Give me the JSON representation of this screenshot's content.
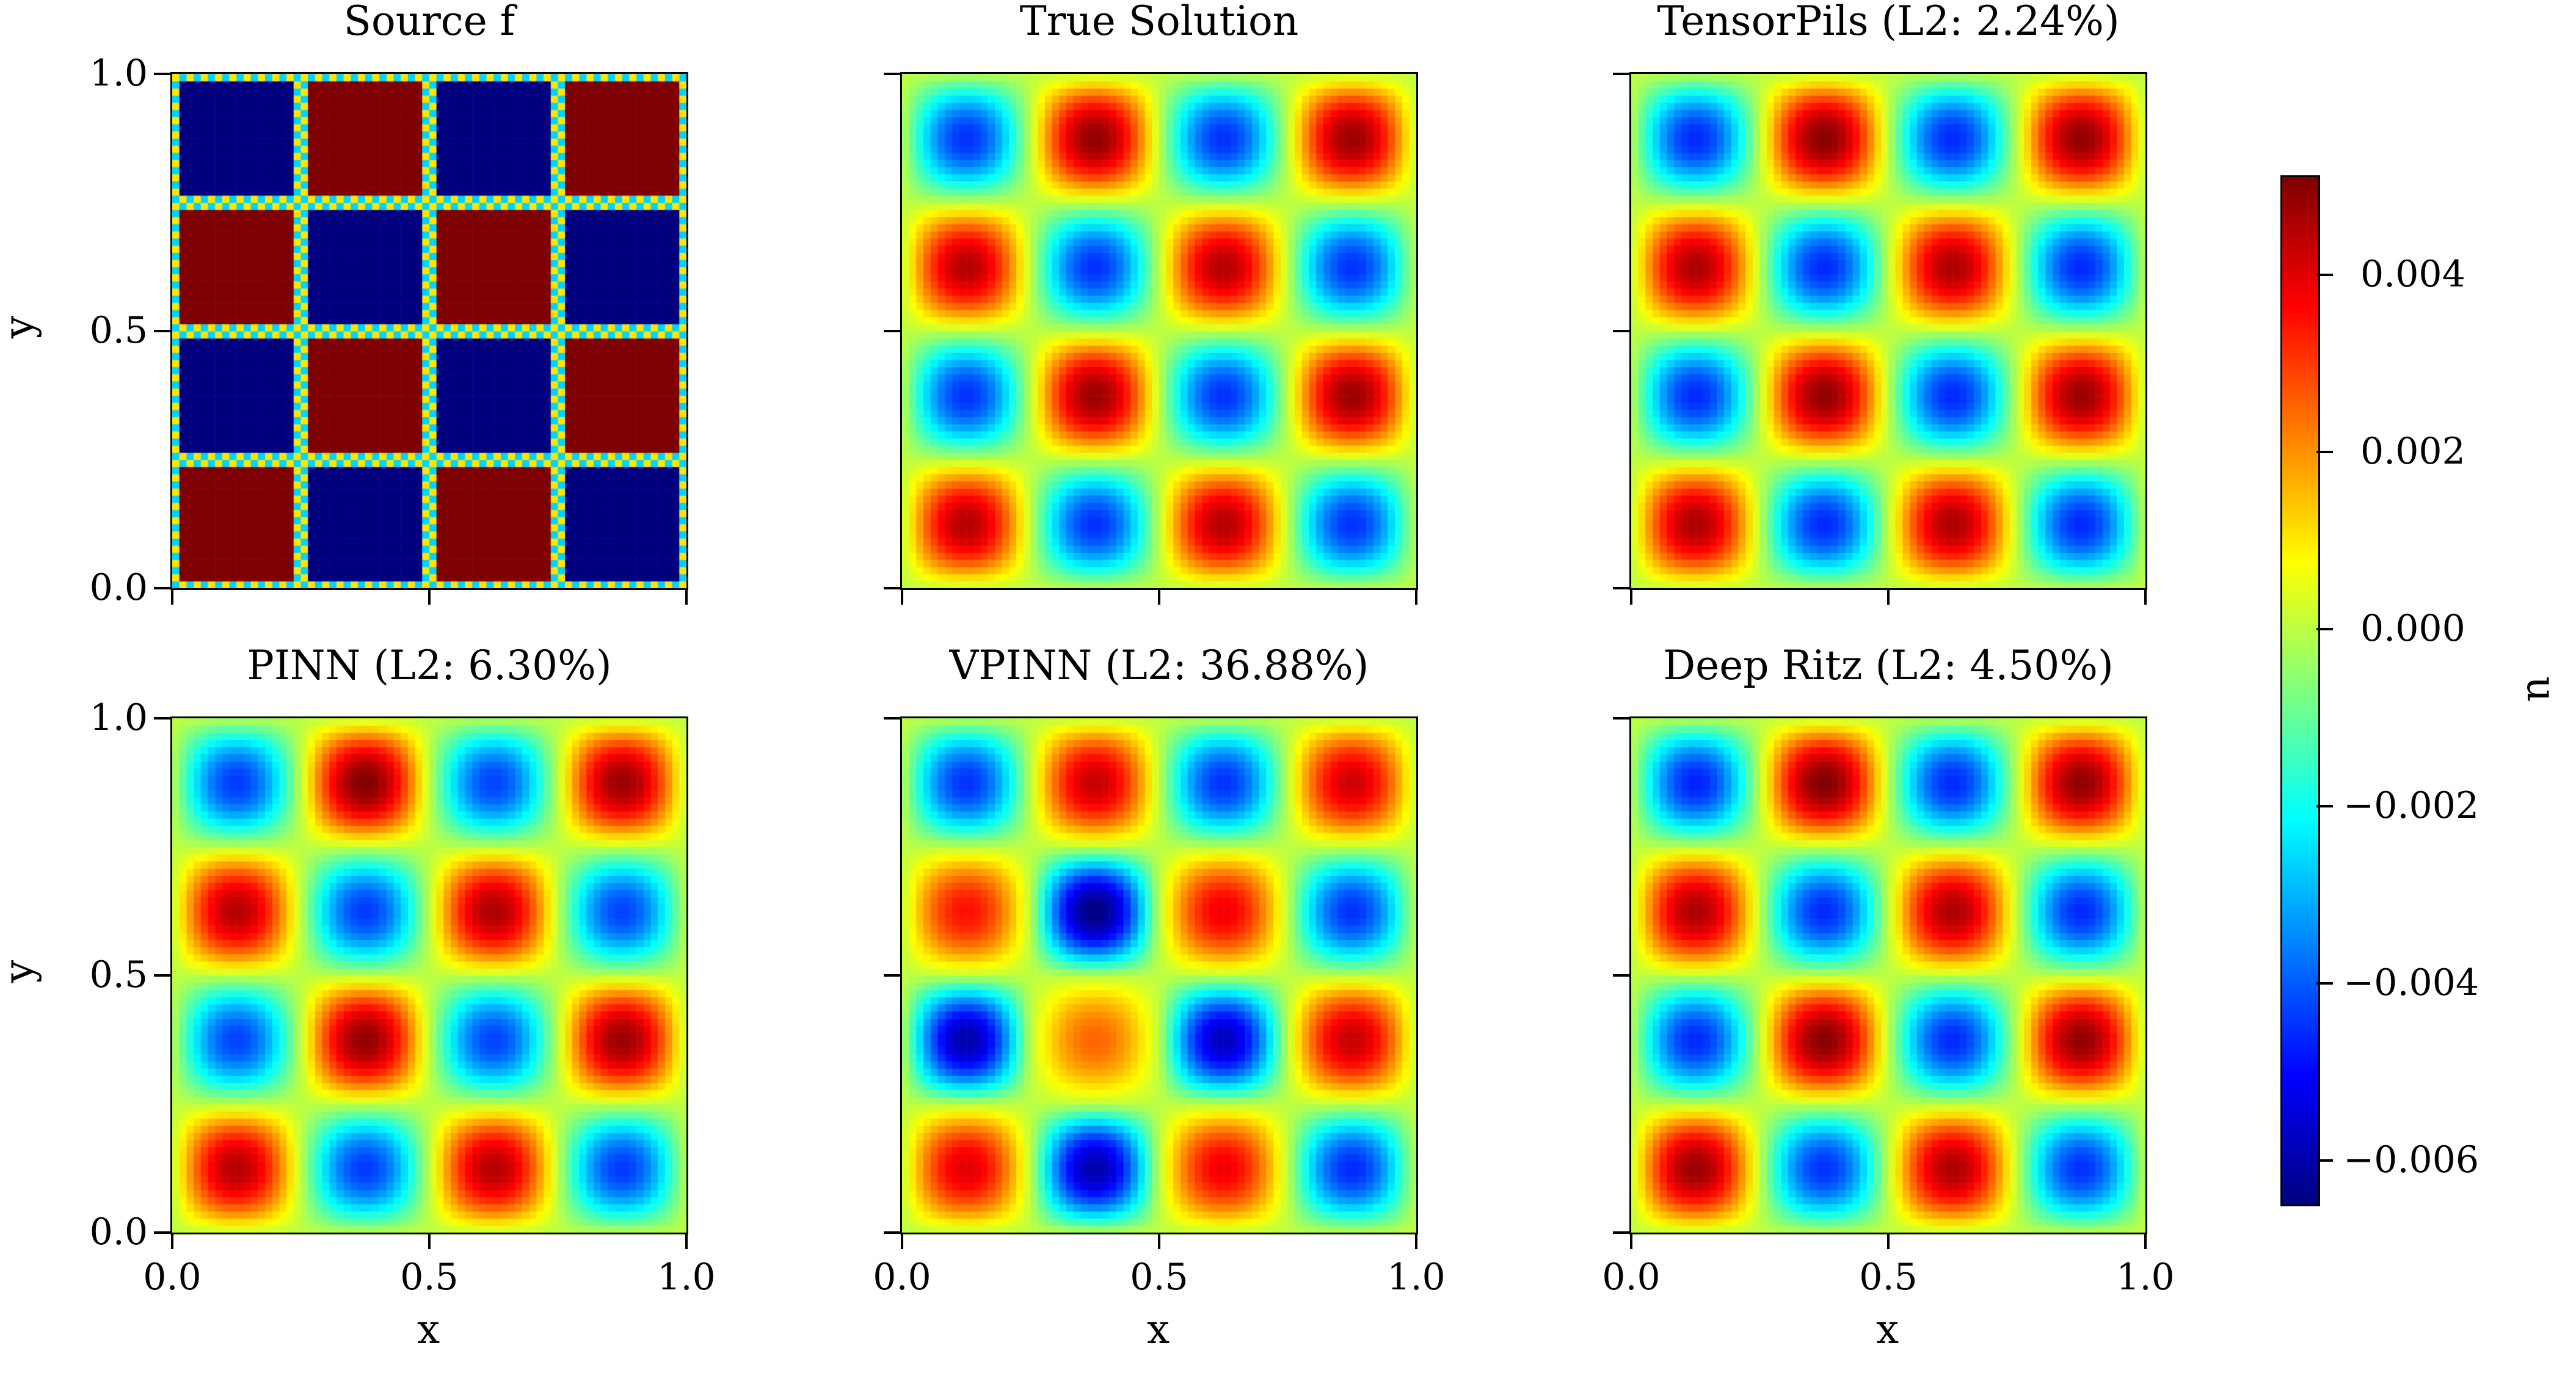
{
  "chart_data": [
    {
      "type": "heatmap",
      "title": "Source f",
      "xlabel": "",
      "ylabel": "y",
      "kind": "checkerboard",
      "cell_signs": [
        [
          1,
          -1,
          1,
          -1
        ],
        [
          -1,
          1,
          -1,
          1
        ],
        [
          1,
          -1,
          1,
          -1
        ],
        [
          -1,
          1,
          -1,
          1
        ]
      ]
    },
    {
      "type": "heatmap",
      "title": "True Solution",
      "xlabel": "",
      "ylabel": "",
      "cell_peaks": [
        [
          0.0045,
          -0.0045,
          0.0045,
          -0.0045
        ],
        [
          -0.0045,
          0.0048,
          -0.0045,
          0.0048
        ],
        [
          0.0045,
          -0.0045,
          0.0045,
          -0.0045
        ],
        [
          -0.0045,
          0.0049,
          -0.0045,
          0.0048
        ]
      ]
    },
    {
      "type": "heatmap",
      "title": "TensorPils (L2: 2.24%)",
      "xlabel": "",
      "ylabel": "",
      "cell_peaks": [
        [
          0.0046,
          -0.0046,
          0.0046,
          -0.0046
        ],
        [
          -0.0046,
          0.0049,
          -0.0046,
          0.0048
        ],
        [
          0.0046,
          -0.0046,
          0.0046,
          -0.0046
        ],
        [
          -0.0046,
          0.005,
          -0.0046,
          0.0049
        ]
      ]
    },
    {
      "type": "heatmap",
      "title": "PINN (L2: 6.30%)",
      "xlabel": "x",
      "ylabel": "y",
      "cell_peaks": [
        [
          0.0045,
          -0.0044,
          0.0045,
          -0.0044
        ],
        [
          -0.0043,
          0.0049,
          -0.0043,
          0.0048
        ],
        [
          0.0045,
          -0.0044,
          0.0046,
          -0.0043
        ],
        [
          -0.0044,
          0.0051,
          -0.0043,
          0.0048
        ]
      ]
    },
    {
      "type": "heatmap",
      "title": "VPINN (L2: 36.88%)",
      "xlabel": "x",
      "ylabel": "",
      "cell_peaks": [
        [
          0.004,
          -0.006,
          0.0038,
          -0.0046
        ],
        [
          -0.006,
          0.0025,
          -0.0058,
          0.0043
        ],
        [
          0.0035,
          -0.0065,
          0.0038,
          -0.0045
        ],
        [
          -0.0045,
          0.0043,
          -0.0045,
          0.0042
        ]
      ]
    },
    {
      "type": "heatmap",
      "title": "Deep Ritz (L2: 4.50%)",
      "xlabel": "x",
      "ylabel": "",
      "cell_peaks": [
        [
          0.0048,
          -0.0045,
          0.0046,
          -0.0045
        ],
        [
          -0.0046,
          0.005,
          -0.0046,
          0.0049
        ],
        [
          0.0046,
          -0.0046,
          0.0046,
          -0.0046
        ],
        [
          -0.0047,
          0.0051,
          -0.0046,
          0.0049
        ]
      ]
    }
  ],
  "axes": {
    "xlim": [
      0,
      1
    ],
    "ylim": [
      0,
      1
    ],
    "ticks": [
      "0.0",
      "0.5",
      "1.0"
    ],
    "tick_values": [
      0,
      0.5,
      1
    ]
  },
  "colorbar": {
    "label": "u",
    "colormap": "jet",
    "vmin": -0.0065,
    "vmax": 0.0051,
    "tick_values": [
      0.004,
      0.002,
      0,
      -0.002,
      -0.004,
      -0.006
    ],
    "tick_labels": [
      "0.004",
      "0.002",
      "0.000",
      "−0.002",
      "−0.004",
      "−0.006"
    ]
  },
  "colors": {
    "source_pos": "#7f0000",
    "source_neg": "#00007f",
    "source_edge_a": "#ffe500",
    "source_edge_b": "#00d4ff"
  }
}
